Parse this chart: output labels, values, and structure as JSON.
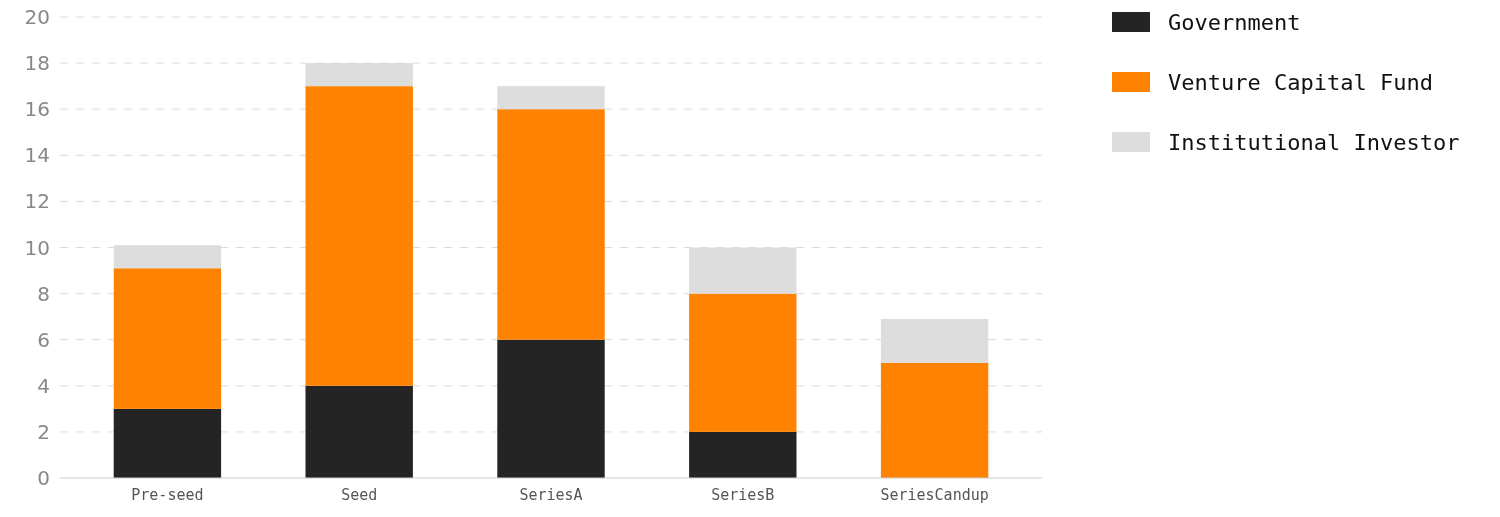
{
  "chart_data": {
    "type": "bar",
    "stacked": true,
    "categories": [
      "Pre-seed",
      "Seed",
      "SeriesA",
      "SeriesB",
      "SeriesCandup"
    ],
    "series": [
      {
        "name": "Government",
        "color": "#242424",
        "values": [
          3,
          4,
          6,
          2,
          0
        ]
      },
      {
        "name": "Venture Capital Fund",
        "color": "#ff8200",
        "values": [
          6.1,
          13,
          10,
          6,
          5
        ]
      },
      {
        "name": "Institutional Investor",
        "color": "#dddddd",
        "values": [
          1,
          1,
          1,
          2,
          1.9
        ]
      }
    ],
    "ylim": [
      0,
      20
    ],
    "yticks": [
      0,
      2,
      4,
      6,
      8,
      10,
      12,
      14,
      16,
      18,
      20
    ],
    "grid": "y",
    "legend": "top right"
  }
}
